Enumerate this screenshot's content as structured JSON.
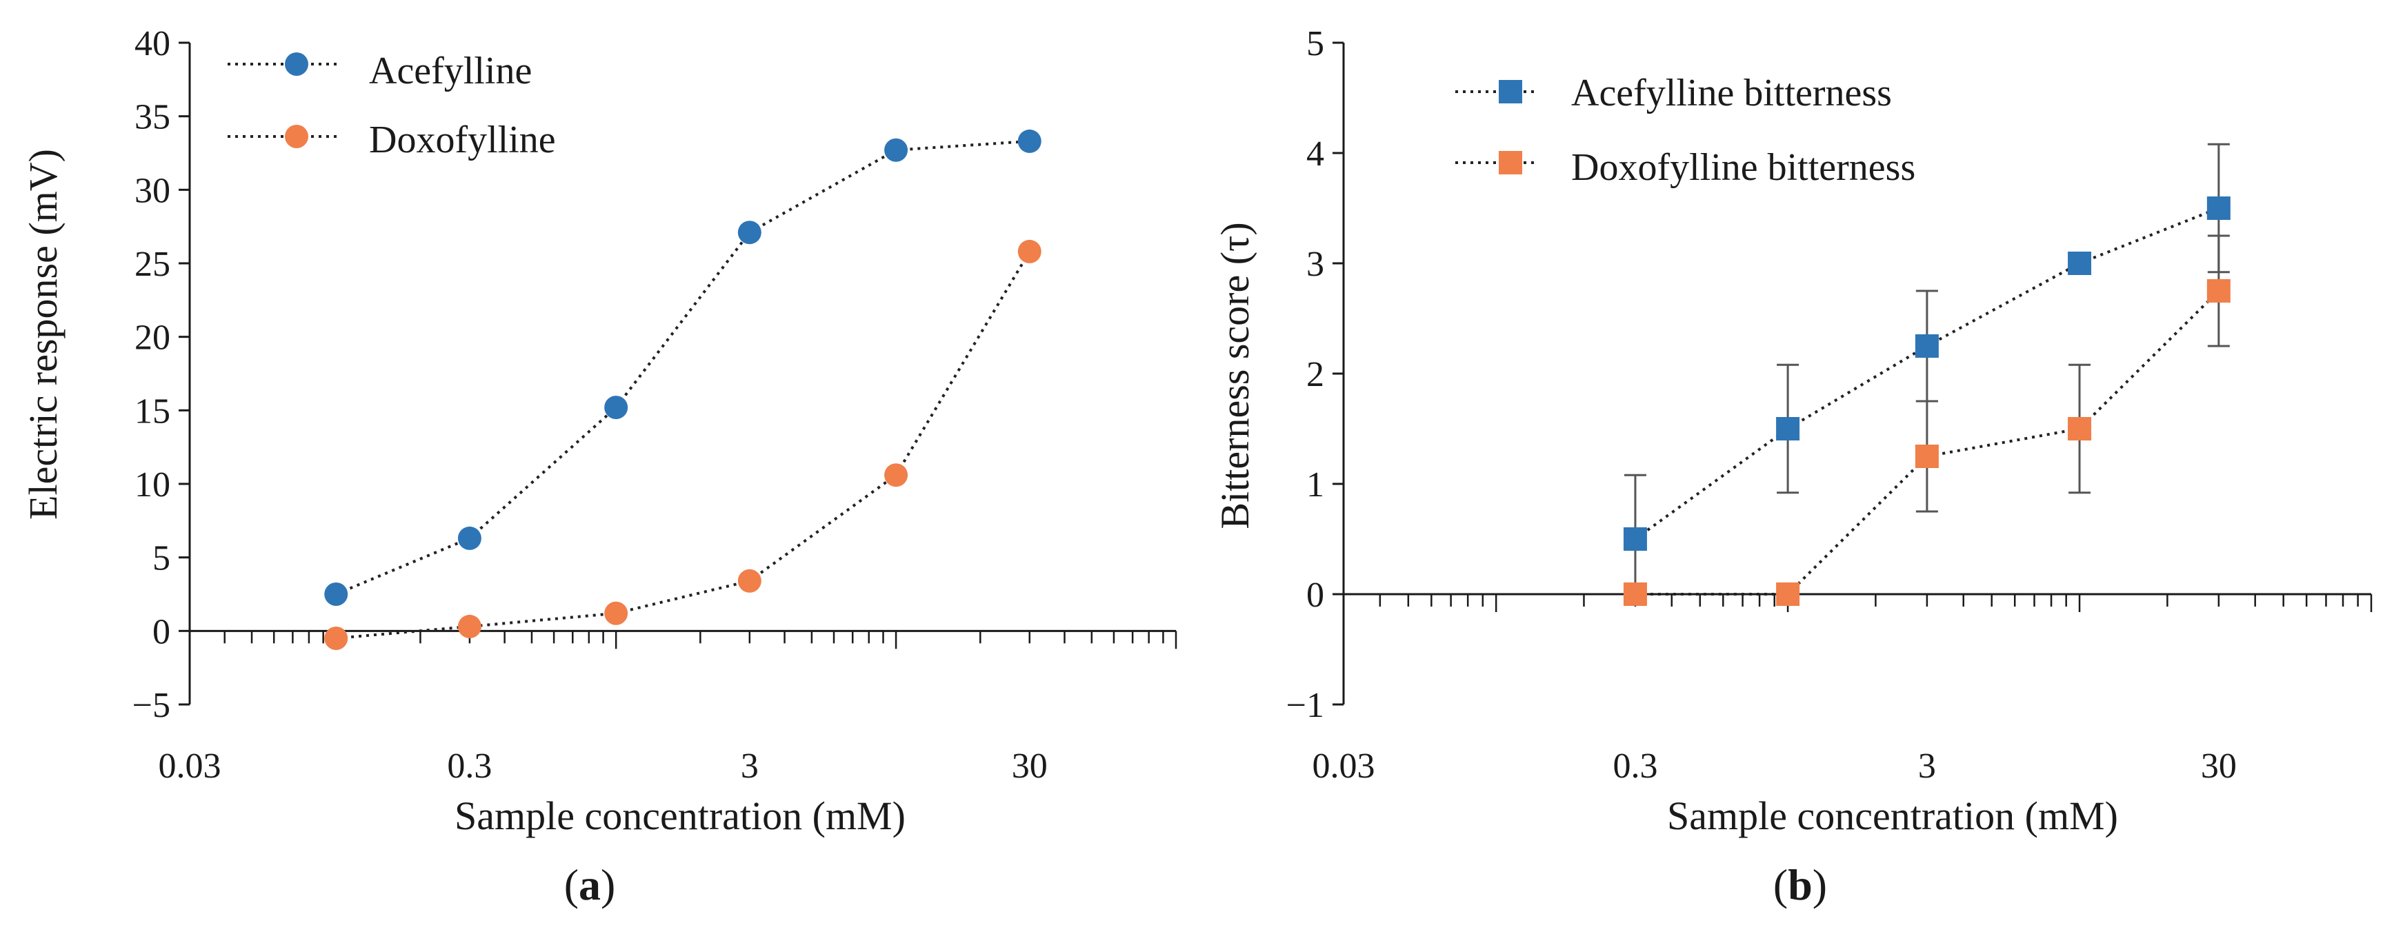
{
  "chart_data": [
    {
      "id": "a",
      "type": "line",
      "panel_label": "a",
      "xscale": "log",
      "xlabel": "Sample concentration (mM)",
      "ylabel": "Electric response (mV)",
      "xlim": [
        0.03,
        100
      ],
      "ylim": [
        -5,
        40
      ],
      "xticks": [
        0.03,
        0.3,
        3,
        30
      ],
      "xtick_labels": [
        "0.03",
        "0.3",
        "3",
        "30"
      ],
      "yticks": [
        -5,
        0,
        5,
        10,
        15,
        20,
        25,
        30,
        35,
        40
      ],
      "ytick_labels": [
        "−5",
        "0",
        "5",
        "10",
        "15",
        "20",
        "25",
        "30",
        "35",
        "40"
      ],
      "marker": "circle",
      "legend_position": "top-left",
      "series": [
        {
          "name": "Acefylline",
          "color": "#2E75B6",
          "x": [
            0.1,
            0.3,
            1,
            3,
            10,
            30
          ],
          "y": [
            2.5,
            6.3,
            15.2,
            27.1,
            32.7,
            33.3
          ]
        },
        {
          "name": "Doxofylline",
          "color": "#F07F4A",
          "x": [
            0.1,
            0.3,
            1,
            3,
            10,
            30
          ],
          "y": [
            -0.5,
            0.3,
            1.2,
            3.4,
            10.6,
            25.8
          ]
        }
      ]
    },
    {
      "id": "b",
      "type": "line",
      "panel_label": "b",
      "xscale": "log",
      "xlabel": "Sample concentration (mM)",
      "ylabel": "Bitterness score (τ)",
      "xlim": [
        0.03,
        100
      ],
      "ylim": [
        -1,
        5
      ],
      "xticks": [
        0.03,
        0.3,
        3,
        30
      ],
      "xtick_labels": [
        "0.03",
        "0.3",
        "3",
        "30"
      ],
      "yticks": [
        -1,
        0,
        1,
        2,
        3,
        4,
        5
      ],
      "ytick_labels": [
        "−1",
        "0",
        "1",
        "2",
        "3",
        "4",
        "5"
      ],
      "marker": "square",
      "legend_position": "top-left",
      "series": [
        {
          "name": "Acefylline bitterness",
          "color": "#2E75B6",
          "x": [
            0.3,
            1,
            3,
            10,
            30
          ],
          "y": [
            0.5,
            1.5,
            2.25,
            3.0,
            3.5
          ],
          "error": [
            0.58,
            0.58,
            0.5,
            0,
            0.58
          ]
        },
        {
          "name": "Doxofylline bitterness",
          "color": "#F07F4A",
          "x": [
            0.3,
            1,
            3,
            10,
            30
          ],
          "y": [
            0,
            0,
            1.25,
            1.5,
            2.75
          ],
          "error": [
            0,
            0,
            0.5,
            0.58,
            0.5
          ]
        }
      ]
    }
  ]
}
